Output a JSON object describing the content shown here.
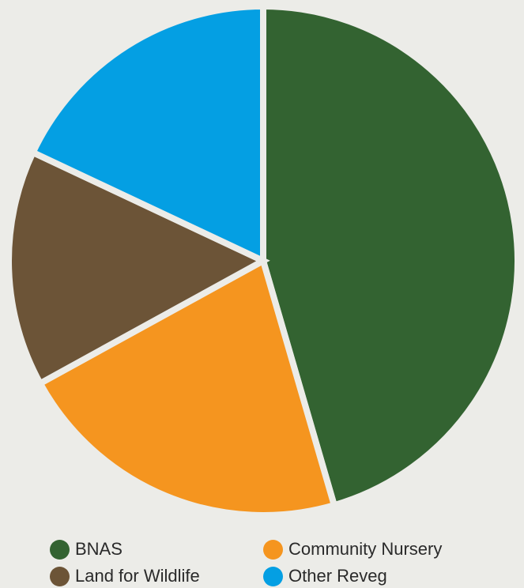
{
  "chart_data": {
    "type": "pie",
    "title": "",
    "slices": [
      {
        "label": "BNAS",
        "value": 45.5,
        "color": "#336331"
      },
      {
        "label": "Community Nursery",
        "value": 21.5,
        "color": "#f5951f"
      },
      {
        "label": "Land for Wildlife",
        "value": 15,
        "color": "#6c5437"
      },
      {
        "label": "Other Reveg",
        "value": 18,
        "color": "#049fe3"
      }
    ],
    "legend": {
      "placement": "bottom",
      "items": [
        "BNAS",
        "Community Nursery",
        "Land for Wildlife",
        "Other Reveg"
      ]
    },
    "start_angle": "12 o'clock",
    "direction": "clockwise",
    "exploded": true
  }
}
